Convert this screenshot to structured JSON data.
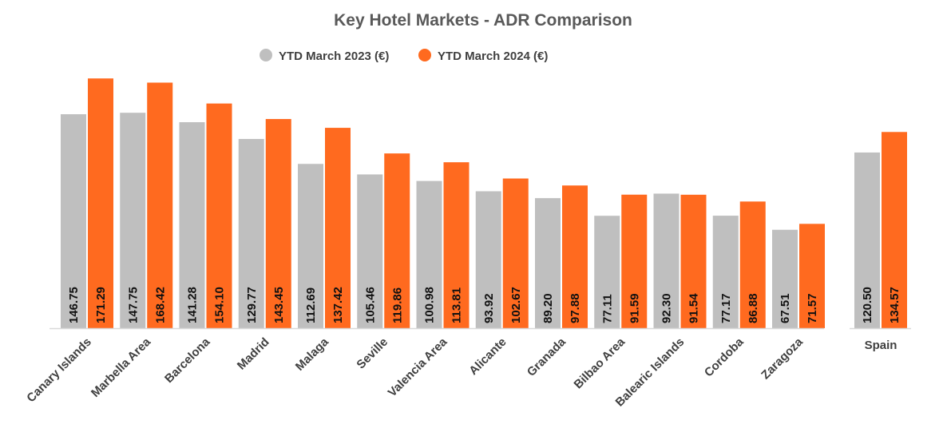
{
  "chart_data": {
    "type": "bar",
    "title": "Key Hotel Markets - ADR Comparison",
    "xlabel": "",
    "ylabel": "",
    "ylim": [
      0,
      175
    ],
    "grid": false,
    "legend_placement": "top",
    "categories": [
      "Canary Islands",
      "Marbella Area",
      "Barcelona",
      "Madrid",
      "Malaga",
      "Seville",
      "Valencia Area",
      "Alicante",
      "Granada",
      "Bilbao Area",
      "Balearic Islands",
      "Cordoba",
      "Zaragoza"
    ],
    "series": [
      {
        "name": "YTD March 2023 (€)",
        "color": "#bfbfbf",
        "values": [
          146.75,
          147.75,
          141.28,
          129.77,
          112.69,
          105.46,
          100.98,
          93.92,
          89.2,
          77.11,
          92.3,
          77.17,
          67.51
        ]
      },
      {
        "name": "YTD March 2024 (€)",
        "color": "#ff6a1f",
        "values": [
          171.29,
          168.42,
          154.1,
          143.45,
          137.42,
          119.86,
          113.81,
          102.67,
          97.88,
          91.59,
          91.54,
          86.88,
          71.57
        ]
      }
    ],
    "total": {
      "category": "Spain",
      "values": [
        120.5,
        134.57
      ]
    }
  }
}
